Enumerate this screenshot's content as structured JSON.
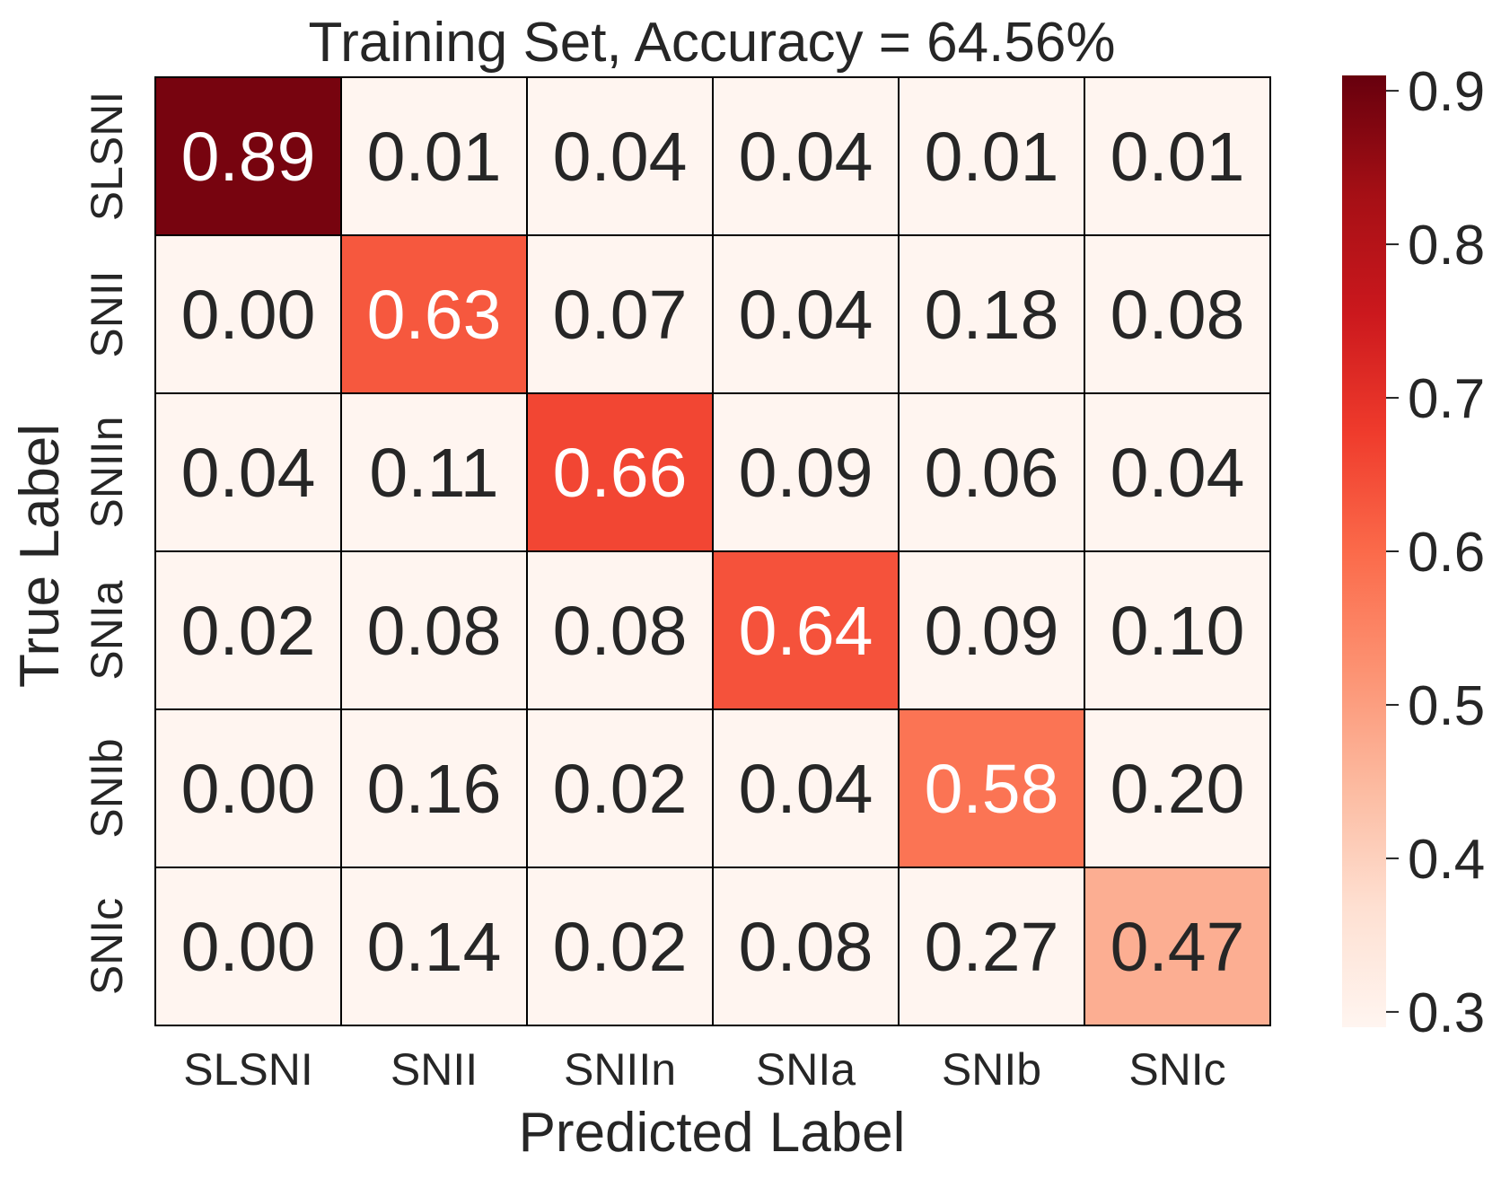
{
  "chart_data": {
    "type": "heatmap",
    "title": "Training Set, Accuracy = 64.56%",
    "xlabel": "Predicted Label",
    "ylabel": "True Label",
    "x_categories": [
      "SLSNI",
      "SNII",
      "SNIIn",
      "SNIa",
      "SNIb",
      "SNIc"
    ],
    "y_categories": [
      "SLSNI",
      "SNII",
      "SNIIn",
      "SNIa",
      "SNIb",
      "SNIc"
    ],
    "values": [
      [
        0.89,
        0.01,
        0.04,
        0.04,
        0.01,
        0.01
      ],
      [
        0.0,
        0.63,
        0.07,
        0.04,
        0.18,
        0.08
      ],
      [
        0.04,
        0.11,
        0.66,
        0.09,
        0.06,
        0.04
      ],
      [
        0.02,
        0.08,
        0.08,
        0.64,
        0.09,
        0.1
      ],
      [
        0.0,
        0.16,
        0.02,
        0.04,
        0.58,
        0.2
      ],
      [
        0.0,
        0.14,
        0.02,
        0.08,
        0.27,
        0.47
      ]
    ],
    "colorbar": {
      "vmin": 0.29,
      "vmax": 0.91,
      "ticks": [
        0.3,
        0.4,
        0.5,
        0.6,
        0.7,
        0.8,
        0.9
      ],
      "tick_labels": [
        "0.3",
        "0.4",
        "0.5",
        "0.6",
        "0.7",
        "0.8",
        "0.9"
      ],
      "colormap": "Reds"
    },
    "text_colors": {
      "dark": "#262626",
      "light": "#ffffff"
    },
    "grid_line_color": "#000000"
  }
}
